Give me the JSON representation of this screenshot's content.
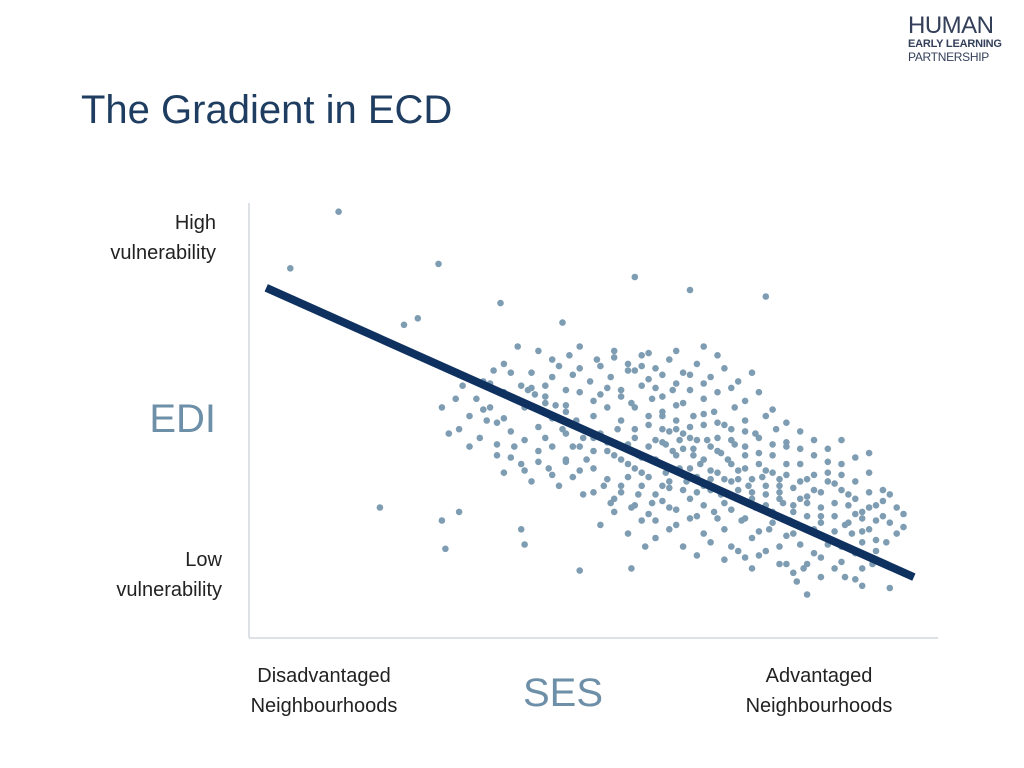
{
  "slide": {
    "title": "The Gradient in ECD"
  },
  "logo": {
    "line1": "HUMAN",
    "line2": "EARLY LEARNING",
    "line3": "PARTNERSHIP"
  },
  "colors": {
    "title": "#1e3d60",
    "axis_label": "#6d8fa8",
    "trend_line": "#0f3160",
    "points": "#7e9db3",
    "axis": "#d4d9de",
    "text": "#222222"
  },
  "chart_data": {
    "type": "scatter",
    "xlabel": "SES",
    "ylabel": "EDI",
    "x_tick_labels": {
      "min": [
        "Disadvantaged",
        "Neighbourhoods"
      ],
      "max": [
        "Advantaged",
        "Neighbourhoods"
      ]
    },
    "y_tick_labels": {
      "max": [
        "High",
        "vulnerability"
      ],
      "min": [
        "Low",
        "vulnerability"
      ]
    },
    "xlim": [
      0,
      100
    ],
    "ylim": [
      0,
      100
    ],
    "grid": false,
    "legend": "none",
    "trend_line": {
      "x": [
        2.5,
        96.5
      ],
      "y": [
        80.5,
        14
      ]
    },
    "points": [
      [
        13,
        98
      ],
      [
        6,
        85
      ],
      [
        27.5,
        86
      ],
      [
        56,
        83
      ],
      [
        75,
        78.5
      ],
      [
        24.5,
        73.5
      ],
      [
        36.5,
        77
      ],
      [
        22.5,
        72
      ],
      [
        45.5,
        72.5
      ],
      [
        64,
        80
      ],
      [
        19,
        30
      ],
      [
        28,
        27
      ],
      [
        30.5,
        29
      ],
      [
        28.5,
        20.5
      ],
      [
        39.5,
        25
      ],
      [
        48,
        15.5
      ],
      [
        40,
        21.5
      ],
      [
        55.5,
        16
      ],
      [
        57.5,
        21
      ],
      [
        72,
        18.5
      ],
      [
        79.5,
        13
      ],
      [
        80.5,
        16
      ],
      [
        81,
        10
      ],
      [
        88,
        13.5
      ],
      [
        86.5,
        14
      ],
      [
        89,
        12
      ],
      [
        89,
        16
      ],
      [
        90.5,
        17
      ],
      [
        93,
        11.5
      ],
      [
        83,
        18.5
      ],
      [
        30,
        55
      ],
      [
        30.5,
        48
      ],
      [
        32,
        51
      ],
      [
        33.5,
        46
      ],
      [
        35,
        53
      ],
      [
        34.5,
        50
      ],
      [
        37,
        50.5
      ],
      [
        35.5,
        61.5
      ],
      [
        38,
        61
      ],
      [
        39.5,
        58
      ],
      [
        40.5,
        57
      ],
      [
        41.5,
        56
      ],
      [
        40,
        53
      ],
      [
        43,
        46
      ],
      [
        43,
        54
      ],
      [
        44.5,
        53.5
      ],
      [
        46,
        52
      ],
      [
        45.5,
        48
      ],
      [
        47,
        44
      ],
      [
        47.5,
        50
      ],
      [
        48.5,
        46
      ],
      [
        50,
        43
      ],
      [
        49,
        41
      ],
      [
        51,
        47
      ],
      [
        52,
        45
      ],
      [
        53,
        42
      ],
      [
        53.5,
        48
      ],
      [
        54.5,
        44
      ],
      [
        55,
        40
      ],
      [
        56,
        46
      ],
      [
        56.5,
        42
      ],
      [
        57,
        38
      ],
      [
        58,
        44
      ],
      [
        59,
        41
      ],
      [
        60,
        45
      ],
      [
        60.5,
        38
      ],
      [
        61.5,
        43
      ],
      [
        62.5,
        39
      ],
      [
        63.5,
        36
      ],
      [
        63,
        47
      ],
      [
        64.5,
        42
      ],
      [
        65.5,
        40
      ],
      [
        66,
        35
      ],
      [
        67,
        44
      ],
      [
        68,
        38
      ],
      [
        68.5,
        33
      ],
      [
        69.5,
        41
      ],
      [
        70,
        36
      ],
      [
        71,
        32
      ],
      [
        72,
        39
      ],
      [
        72.5,
        35
      ],
      [
        73.5,
        30
      ],
      [
        74.5,
        37
      ],
      [
        75,
        33
      ],
      [
        76,
        29
      ],
      [
        77,
        35
      ],
      [
        77.5,
        31
      ],
      [
        78.5,
        27
      ],
      [
        79,
        24
      ],
      [
        80,
        32
      ],
      [
        81,
        28
      ],
      [
        82,
        25
      ],
      [
        83,
        30
      ],
      [
        84,
        23
      ],
      [
        85,
        28
      ],
      [
        86,
        21
      ],
      [
        86.5,
        26
      ],
      [
        87.5,
        24
      ],
      [
        89,
        22
      ],
      [
        90,
        25
      ],
      [
        91,
        20
      ],
      [
        92.5,
        22
      ],
      [
        94,
        24
      ],
      [
        53,
        32
      ],
      [
        54,
        35
      ],
      [
        55.5,
        30
      ],
      [
        56.5,
        33
      ],
      [
        58.5,
        31
      ],
      [
        59,
        27
      ],
      [
        60,
        35
      ],
      [
        61,
        30
      ],
      [
        62,
        26
      ],
      [
        64,
        32
      ],
      [
        65,
        28
      ],
      [
        66,
        24
      ],
      [
        67.5,
        29
      ],
      [
        69,
        25
      ],
      [
        70,
        21
      ],
      [
        71.5,
        27
      ],
      [
        73,
        23
      ],
      [
        74,
        19
      ],
      [
        75.5,
        25
      ],
      [
        77,
        21
      ],
      [
        78,
        17
      ],
      [
        36,
        42
      ],
      [
        37,
        38
      ],
      [
        38.5,
        44
      ],
      [
        39.5,
        40
      ],
      [
        41,
        36
      ],
      [
        42,
        43
      ],
      [
        43.5,
        39
      ],
      [
        45,
        35
      ],
      [
        46,
        41
      ],
      [
        47,
        37
      ],
      [
        48.5,
        33
      ],
      [
        50,
        39
      ],
      [
        51.5,
        35
      ],
      [
        52.5,
        31
      ],
      [
        44,
        60
      ],
      [
        46,
        57
      ],
      [
        48,
        62
      ],
      [
        49.5,
        59
      ],
      [
        51,
        56
      ],
      [
        52.5,
        60
      ],
      [
        54,
        57
      ],
      [
        55.5,
        54
      ],
      [
        57,
        58
      ],
      [
        58.5,
        55
      ],
      [
        60,
        52
      ],
      [
        61.5,
        57
      ],
      [
        63,
        54
      ],
      [
        64.5,
        51
      ],
      [
        66,
        55
      ],
      [
        67.5,
        52
      ],
      [
        69,
        49
      ],
      [
        70.5,
        53
      ],
      [
        72,
        50
      ],
      [
        73.5,
        47
      ],
      [
        75,
        51
      ],
      [
        76.5,
        48
      ],
      [
        78,
        45
      ],
      [
        42,
        66
      ],
      [
        44,
        64
      ],
      [
        46.5,
        65
      ],
      [
        48,
        67
      ],
      [
        50.5,
        64
      ],
      [
        53,
        66
      ],
      [
        55,
        63
      ],
      [
        57,
        65
      ],
      [
        59,
        62
      ],
      [
        61,
        64
      ],
      [
        63,
        61
      ],
      [
        65,
        63
      ],
      [
        67,
        60
      ],
      [
        69,
        62
      ],
      [
        71,
        59
      ],
      [
        73,
        61
      ],
      [
        62,
        66
      ],
      [
        66,
        67
      ],
      [
        68,
        65
      ],
      [
        64,
        57
      ],
      [
        33,
        55
      ],
      [
        31,
        58
      ],
      [
        28,
        53
      ],
      [
        29,
        47
      ],
      [
        32,
        44
      ],
      [
        34,
        59
      ],
      [
        37,
        63
      ],
      [
        39,
        67
      ],
      [
        41,
        61
      ],
      [
        43,
        58
      ],
      [
        56,
        48
      ],
      [
        58,
        51
      ],
      [
        60,
        48
      ],
      [
        62,
        50
      ],
      [
        64,
        46
      ],
      [
        66,
        49
      ],
      [
        68,
        46
      ],
      [
        70,
        48
      ],
      [
        72,
        44
      ],
      [
        74,
        46
      ],
      [
        76,
        42
      ],
      [
        78,
        44
      ],
      [
        80,
        40
      ],
      [
        82,
        42
      ],
      [
        84,
        38
      ],
      [
        86,
        40
      ],
      [
        88,
        36
      ],
      [
        90,
        38
      ],
      [
        92,
        34
      ],
      [
        94,
        30
      ],
      [
        55,
        37
      ],
      [
        57,
        35
      ],
      [
        59,
        33
      ],
      [
        61,
        36
      ],
      [
        63,
        34
      ],
      [
        65,
        37
      ],
      [
        67,
        34
      ],
      [
        69,
        31
      ],
      [
        71,
        34
      ],
      [
        73,
        32
      ],
      [
        75,
        35
      ],
      [
        77,
        32
      ],
      [
        79,
        29
      ],
      [
        81,
        31
      ],
      [
        83,
        28
      ],
      [
        85,
        31
      ],
      [
        87,
        33
      ],
      [
        89,
        29
      ],
      [
        91,
        27
      ],
      [
        93,
        33
      ],
      [
        50,
        51
      ],
      [
        52,
        53
      ],
      [
        54,
        50
      ],
      [
        56,
        53
      ],
      [
        58,
        49
      ],
      [
        60,
        51
      ],
      [
        62,
        48
      ],
      [
        44,
        44
      ],
      [
        46,
        47
      ],
      [
        48,
        44
      ],
      [
        50,
        46
      ],
      [
        52,
        43
      ],
      [
        54,
        41
      ],
      [
        56,
        39
      ],
      [
        58,
        37
      ],
      [
        60,
        40
      ],
      [
        62,
        42
      ],
      [
        64,
        39
      ],
      [
        66,
        41
      ],
      [
        68,
        43
      ],
      [
        70,
        40
      ],
      [
        72,
        42
      ],
      [
        74,
        40
      ],
      [
        76,
        38
      ],
      [
        78,
        40
      ],
      [
        80,
        36
      ],
      [
        82,
        34
      ],
      [
        84,
        36
      ],
      [
        86,
        34
      ],
      [
        88,
        32
      ],
      [
        90,
        30
      ],
      [
        92,
        28
      ],
      [
        51,
        26
      ],
      [
        53,
        29
      ],
      [
        55,
        24
      ],
      [
        57,
        27
      ],
      [
        59,
        23
      ],
      [
        61,
        25
      ],
      [
        63,
        21
      ],
      [
        65,
        19
      ],
      [
        67,
        22
      ],
      [
        69,
        18
      ],
      [
        71,
        20
      ],
      [
        73,
        16
      ],
      [
        75,
        20
      ],
      [
        77,
        17
      ],
      [
        79,
        15
      ],
      [
        81,
        17
      ],
      [
        83,
        14
      ],
      [
        85,
        16
      ],
      [
        60.5,
        44.5
      ],
      [
        62.5,
        45.5
      ],
      [
        64.5,
        43.5
      ],
      [
        66.5,
        45.5
      ],
      [
        68.5,
        42.5
      ],
      [
        70.5,
        44.5
      ],
      [
        61,
        34.5
      ],
      [
        63,
        37.5
      ],
      [
        65,
        33.5
      ],
      [
        67,
        36.5
      ],
      [
        69,
        33.5
      ],
      [
        71,
        36.5
      ],
      [
        73,
        33.5
      ],
      [
        75,
        30.5
      ],
      [
        77,
        33.5
      ],
      [
        79,
        30.5
      ],
      [
        81,
        32.5
      ],
      [
        83,
        33.5
      ],
      [
        85,
        35.5
      ],
      [
        87,
        30.5
      ],
      [
        89,
        27.5
      ],
      [
        91,
        30.5
      ],
      [
        93,
        26.5
      ],
      [
        95,
        28.5
      ],
      [
        95,
        25.5
      ],
      [
        88,
        28.5
      ],
      [
        90,
        33.5
      ],
      [
        92,
        31.5
      ],
      [
        86,
        37.5
      ],
      [
        84,
        40.5
      ],
      [
        82,
        37.5
      ],
      [
        80,
        43.5
      ],
      [
        78,
        37.5
      ],
      [
        76,
        44.5
      ],
      [
        74,
        42.5
      ],
      [
        72,
        47.5
      ],
      [
        70,
        45.5
      ],
      [
        68,
        49.5
      ],
      [
        66,
        51.5
      ],
      [
        64,
        48.5
      ],
      [
        62,
        53.5
      ],
      [
        60,
        55.5
      ],
      [
        58,
        59.5
      ],
      [
        56,
        61.5
      ],
      [
        54,
        55.5
      ],
      [
        52,
        57.5
      ],
      [
        50,
        54.5
      ],
      [
        48,
        56.5
      ],
      [
        46,
        53.5
      ],
      [
        44,
        50.5
      ],
      [
        42,
        48.5
      ],
      [
        40,
        45.5
      ],
      [
        38,
        47.5
      ],
      [
        36,
        49.5
      ],
      [
        34,
        52.5
      ],
      [
        55,
        44.5
      ],
      [
        57,
        41.5
      ],
      [
        59,
        45.5
      ],
      [
        61,
        47.5
      ],
      [
        63,
        43.5
      ],
      [
        65,
        45.5
      ],
      [
        67,
        38.5
      ],
      [
        69,
        36.5
      ],
      [
        71,
        38.5
      ],
      [
        73,
        36.5
      ],
      [
        75,
        38.5
      ],
      [
        77,
        36.5
      ],
      [
        79,
        34.5
      ],
      [
        81,
        36.5
      ],
      [
        83,
        26.5
      ],
      [
        85,
        24.5
      ],
      [
        87,
        26.5
      ],
      [
        89,
        24.5
      ],
      [
        91,
        22.5
      ],
      [
        80,
        21.5
      ],
      [
        82,
        19.5
      ],
      [
        84,
        21.5
      ],
      [
        86,
        17.5
      ],
      [
        88,
        19.5
      ],
      [
        78,
        23.5
      ],
      [
        76,
        26.5
      ],
      [
        74,
        24.5
      ],
      [
        72,
        27.5
      ],
      [
        70,
        29.5
      ],
      [
        68,
        27.5
      ],
      [
        66,
        30.5
      ],
      [
        64,
        27.5
      ],
      [
        62,
        29.5
      ],
      [
        60,
        31.5
      ],
      [
        58,
        28.5
      ],
      [
        56,
        30.5
      ],
      [
        54,
        33.5
      ],
      [
        52,
        36.5
      ],
      [
        50,
        33.5
      ],
      [
        48,
        38.5
      ],
      [
        46,
        40.5
      ],
      [
        44,
        37.5
      ],
      [
        42,
        40.5
      ],
      [
        40,
        38.5
      ],
      [
        38,
        41.5
      ],
      [
        36,
        44.5
      ],
      [
        58,
        65.5
      ],
      [
        60,
        60.5
      ],
      [
        62,
        58.5
      ],
      [
        64,
        60.5
      ],
      [
        66,
        58.5
      ],
      [
        68,
        56.5
      ],
      [
        70,
        57.5
      ],
      [
        72,
        54.5
      ],
      [
        74,
        56.5
      ],
      [
        76,
        52.5
      ],
      [
        78,
        49.5
      ],
      [
        80,
        47.5
      ],
      [
        82,
        45.5
      ],
      [
        84,
        43.5
      ],
      [
        86,
        45.5
      ],
      [
        88,
        41.5
      ],
      [
        90,
        42.5
      ],
      [
        51,
        62.5
      ],
      [
        53,
        64.5
      ],
      [
        55,
        61.5
      ],
      [
        57,
        62.5
      ],
      [
        59,
        57.5
      ],
      [
        47,
        60.5
      ],
      [
        45,
        62.5
      ],
      [
        43,
        55.5
      ],
      [
        41,
        57.5
      ],
      [
        39,
        54.5
      ],
      [
        37,
        56.5
      ],
      [
        35,
        58.5
      ]
    ]
  }
}
